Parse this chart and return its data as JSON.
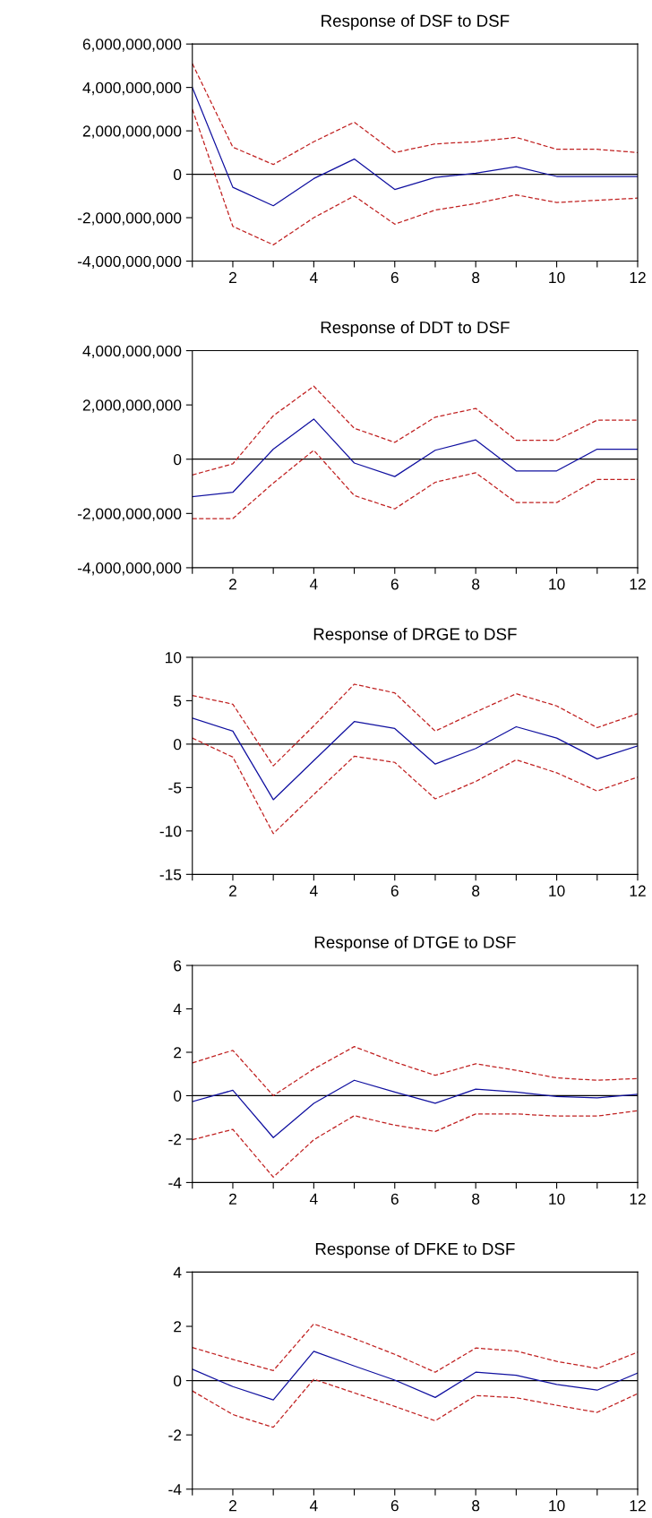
{
  "chart_data": [
    {
      "type": "line",
      "title": "Response of DSF to DSF",
      "x": [
        1,
        2,
        3,
        4,
        5,
        6,
        7,
        8,
        9,
        10,
        11,
        12
      ],
      "xlim": [
        1,
        12
      ],
      "xticks": [
        {
          "value": 1,
          "label": null
        },
        2,
        {
          "value": 3,
          "label": null
        },
        4,
        {
          "value": 5,
          "label": null
        },
        6,
        {
          "value": 7,
          "label": null
        },
        8,
        {
          "value": 9,
          "label": null
        },
        10,
        {
          "value": 11,
          "label": null
        },
        12
      ],
      "ylim": [
        -4000000000,
        6000000000
      ],
      "yticks": [
        {
          "value": -4000000000,
          "label": "-4,000,000,000"
        },
        {
          "value": -2000000000,
          "label": "-2,000,000,000"
        },
        {
          "value": 0,
          "label": "0"
        },
        {
          "value": 2000000000,
          "label": "2,000,000,000"
        },
        {
          "value": 4000000000,
          "label": "4,000,000,000"
        },
        {
          "value": 6000000000,
          "label": "6,000,000,000"
        }
      ],
      "grid": false,
      "ref_lines": [
        {
          "axis": "y",
          "value": 0,
          "color": "#000000",
          "line_style": "solid"
        }
      ],
      "series": [
        {
          "color": "#1010a0",
          "line_style": "solid",
          "values": [
            4000000000,
            -600000000,
            -1450000000,
            -200000000,
            700000000,
            -700000000,
            -150000000,
            50000000,
            350000000,
            -100000000,
            -100000000,
            -100000000
          ]
        },
        {
          "color": "#c02020",
          "line_style": "dashed",
          "values": [
            5100000000,
            1250000000,
            450000000,
            1500000000,
            2400000000,
            1000000000,
            1400000000,
            1500000000,
            1700000000,
            1150000000,
            1150000000,
            1000000000
          ]
        },
        {
          "color": "#c02020",
          "line_style": "dashed",
          "values": [
            3000000000,
            -2400000000,
            -3250000000,
            -2000000000,
            -1000000000,
            -2300000000,
            -1650000000,
            -1350000000,
            -950000000,
            -1300000000,
            -1200000000,
            -1100000000
          ]
        }
      ]
    },
    {
      "type": "line",
      "title": "Response of DDT to DSF",
      "x": [
        1,
        2,
        3,
        4,
        5,
        6,
        7,
        8,
        9,
        10,
        11,
        12
      ],
      "xlim": [
        1,
        12
      ],
      "xticks": [
        {
          "value": 1,
          "label": null
        },
        2,
        {
          "value": 3,
          "label": null
        },
        4,
        {
          "value": 5,
          "label": null
        },
        6,
        {
          "value": 7,
          "label": null
        },
        8,
        {
          "value": 9,
          "label": null
        },
        10,
        {
          "value": 11,
          "label": null
        },
        12
      ],
      "ylim": [
        -4000000000,
        4000000000
      ],
      "yticks": [
        {
          "value": -4000000000,
          "label": "-4,000,000,000"
        },
        {
          "value": -2000000000,
          "label": "-2,000,000,000"
        },
        {
          "value": 0,
          "label": "0"
        },
        {
          "value": 2000000000,
          "label": "2,000,000,000"
        },
        {
          "value": 4000000000,
          "label": "4,000,000,000"
        }
      ],
      "grid": false,
      "ref_lines": [
        {
          "axis": "y",
          "value": 0,
          "color": "#000000",
          "line_style": "solid"
        }
      ],
      "series": [
        {
          "color": "#1010a0",
          "line_style": "solid",
          "values": [
            -1380000000,
            -1220000000,
            370000000,
            1480000000,
            -140000000,
            -640000000,
            330000000,
            710000000,
            -430000000,
            -430000000,
            370000000,
            370000000
          ]
        },
        {
          "color": "#c02020",
          "line_style": "dashed",
          "values": [
            -580000000,
            -170000000,
            1600000000,
            2690000000,
            1140000000,
            620000000,
            1550000000,
            1870000000,
            700000000,
            700000000,
            1440000000,
            1440000000
          ]
        },
        {
          "color": "#c02020",
          "line_style": "dashed",
          "values": [
            -2190000000,
            -2190000000,
            -880000000,
            330000000,
            -1340000000,
            -1830000000,
            -850000000,
            -500000000,
            -1600000000,
            -1600000000,
            -750000000,
            -750000000
          ]
        }
      ]
    },
    {
      "type": "line",
      "title": "Response of DRGE to DSF",
      "x": [
        1,
        2,
        3,
        4,
        5,
        6,
        7,
        8,
        9,
        10,
        11,
        12
      ],
      "xlim": [
        1,
        12
      ],
      "xticks": [
        {
          "value": 1,
          "label": null
        },
        2,
        {
          "value": 3,
          "label": null
        },
        4,
        {
          "value": 5,
          "label": null
        },
        6,
        {
          "value": 7,
          "label": null
        },
        8,
        {
          "value": 9,
          "label": null
        },
        10,
        {
          "value": 11,
          "label": null
        },
        12
      ],
      "ylim": [
        -15,
        10
      ],
      "yticks": [
        -15,
        -10,
        -5,
        0,
        5,
        10
      ],
      "grid": false,
      "ref_lines": [
        {
          "axis": "y",
          "value": 0,
          "color": "#000000",
          "line_style": "solid"
        }
      ],
      "series": [
        {
          "color": "#1010a0",
          "line_style": "solid",
          "values": [
            3.0,
            1.5,
            -6.4,
            -1.9,
            2.6,
            1.8,
            -2.3,
            -0.5,
            2.0,
            0.7,
            -1.7,
            -0.2
          ]
        },
        {
          "color": "#c02020",
          "line_style": "dashed",
          "values": [
            5.6,
            4.6,
            -2.5,
            2.1,
            6.9,
            5.9,
            1.5,
            3.7,
            5.8,
            4.4,
            1.9,
            3.5
          ]
        },
        {
          "color": "#c02020",
          "line_style": "dashed",
          "values": [
            0.7,
            -1.5,
            -10.3,
            -5.8,
            -1.4,
            -2.1,
            -6.3,
            -4.3,
            -1.8,
            -3.3,
            -5.4,
            -3.8
          ]
        }
      ]
    },
    {
      "type": "line",
      "title": "Response of DTGE to DSF",
      "x": [
        1,
        2,
        3,
        4,
        5,
        6,
        7,
        8,
        9,
        10,
        11,
        12
      ],
      "xlim": [
        1,
        12
      ],
      "xticks": [
        {
          "value": 1,
          "label": null
        },
        2,
        {
          "value": 3,
          "label": null
        },
        4,
        {
          "value": 5,
          "label": null
        },
        6,
        {
          "value": 7,
          "label": null
        },
        8,
        {
          "value": 9,
          "label": null
        },
        10,
        {
          "value": 11,
          "label": null
        },
        12
      ],
      "ylim": [
        -4,
        6
      ],
      "yticks": [
        -4,
        -2,
        0,
        2,
        4,
        6
      ],
      "grid": false,
      "ref_lines": [
        {
          "axis": "y",
          "value": 0,
          "color": "#000000",
          "line_style": "solid"
        }
      ],
      "series": [
        {
          "color": "#1010a0",
          "line_style": "solid",
          "values": [
            -0.27,
            0.25,
            -1.93,
            -0.35,
            0.71,
            0.17,
            -0.35,
            0.3,
            0.17,
            -0.04,
            -0.1,
            0.06
          ]
        },
        {
          "color": "#c02020",
          "line_style": "dashed",
          "values": [
            1.51,
            2.09,
            0.0,
            1.23,
            2.26,
            1.55,
            0.94,
            1.47,
            1.17,
            0.82,
            0.71,
            0.79
          ]
        },
        {
          "color": "#c02020",
          "line_style": "dashed",
          "values": [
            -2.03,
            -1.55,
            -3.75,
            -2.03,
            -0.92,
            -1.36,
            -1.65,
            -0.84,
            -0.84,
            -0.94,
            -0.94,
            -0.69
          ]
        }
      ]
    },
    {
      "type": "line",
      "title": "Response of DFKE to DSF",
      "x": [
        1,
        2,
        3,
        4,
        5,
        6,
        7,
        8,
        9,
        10,
        11,
        12
      ],
      "xlim": [
        1,
        12
      ],
      "xticks": [
        {
          "value": 1,
          "label": null
        },
        2,
        {
          "value": 3,
          "label": null
        },
        4,
        {
          "value": 5,
          "label": null
        },
        6,
        {
          "value": 7,
          "label": null
        },
        8,
        {
          "value": 9,
          "label": null
        },
        10,
        {
          "value": 11,
          "label": null
        },
        12
      ],
      "ylim": [
        -4,
        4
      ],
      "yticks": [
        -4,
        -2,
        0,
        2,
        4
      ],
      "grid": false,
      "ref_lines": [
        {
          "axis": "y",
          "value": 0,
          "color": "#000000",
          "line_style": "solid"
        }
      ],
      "series": [
        {
          "color": "#1010a0",
          "line_style": "solid",
          "values": [
            0.42,
            -0.22,
            -0.71,
            1.08,
            0.54,
            0.02,
            -0.62,
            0.31,
            0.2,
            -0.14,
            -0.35,
            0.28
          ]
        },
        {
          "color": "#c02020",
          "line_style": "dashed",
          "values": [
            1.22,
            0.78,
            0.37,
            2.09,
            1.55,
            0.97,
            0.31,
            1.2,
            1.09,
            0.71,
            0.45,
            1.05
          ]
        },
        {
          "color": "#c02020",
          "line_style": "dashed",
          "values": [
            -0.38,
            -1.25,
            -1.72,
            0.05,
            -0.45,
            -0.95,
            -1.48,
            -0.55,
            -0.63,
            -0.91,
            -1.17,
            -0.48
          ]
        }
      ]
    }
  ]
}
